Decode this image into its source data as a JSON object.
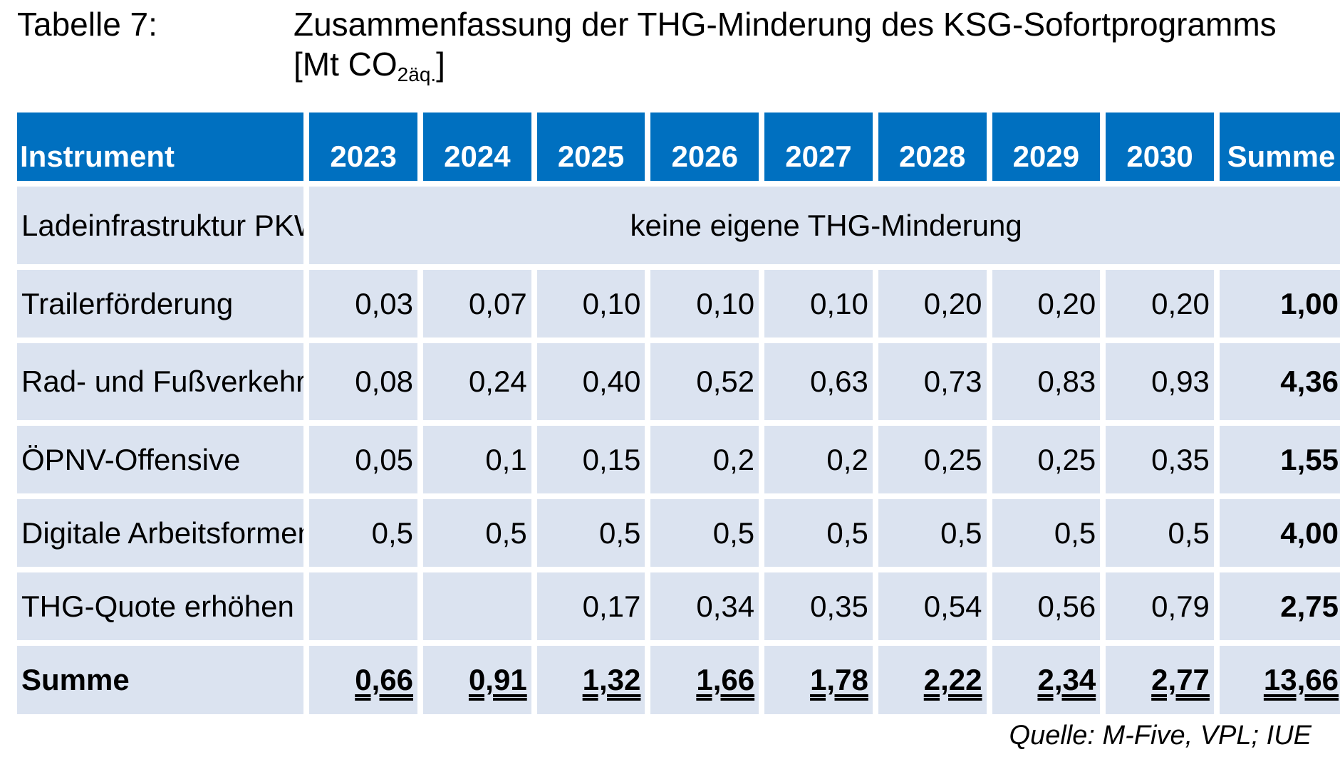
{
  "caption": {
    "label": "Tabelle 7:",
    "title_line1": "Zusammenfassung der THG-Minderung des KSG-Sofortprogramms",
    "unit_prefix": "[Mt CO",
    "unit_sub": "2äq.",
    "unit_suffix": "]"
  },
  "table": {
    "headers": [
      "Instrument",
      "2023",
      "2024",
      "2025",
      "2026",
      "2027",
      "2028",
      "2029",
      "2030",
      "Summe"
    ],
    "rows": [
      {
        "instrument": "Ladeinfrastruktur PKW und NFz",
        "note": "keine eigene THG-Minderung"
      },
      {
        "instrument": "Trailerförderung",
        "values": [
          "0,03",
          "0,07",
          "0,10",
          "0,10",
          "0,10",
          "0,20",
          "0,20",
          "0,20"
        ],
        "sum": "1,00"
      },
      {
        "instrument": "Rad- und Fußverkehr besser",
        "values": [
          "0,08",
          "0,24",
          "0,40",
          "0,52",
          "0,63",
          "0,73",
          "0,83",
          "0,93"
        ],
        "sum": "4,36"
      },
      {
        "instrument": "ÖPNV-Offensive",
        "values": [
          "0,05",
          "0,1",
          "0,15",
          "0,2",
          "0,2",
          "0,25",
          "0,25",
          "0,35"
        ],
        "sum": "1,55"
      },
      {
        "instrument": "Digitale Arbeitsformen",
        "values": [
          "0,5",
          "0,5",
          "0,5",
          "0,5",
          "0,5",
          "0,5",
          "0,5",
          "0,5"
        ],
        "sum": "4,00"
      },
      {
        "instrument": "THG-Quote erhöhen",
        "values": [
          "",
          "",
          "0,17",
          "0,34",
          "0,35",
          "0,54",
          "0,56",
          "0,79"
        ],
        "sum": "2,75"
      }
    ],
    "total": {
      "label": "Summe",
      "values": [
        "0,66",
        "0,91",
        "1,32",
        "1,66",
        "1,78",
        "2,22",
        "2,34",
        "2,77"
      ],
      "sum": "13,66"
    }
  },
  "source": "Quelle: M-Five, VPL; IUE",
  "colors": {
    "header_bg": "#0070c0",
    "cell_bg": "#dbe3f0",
    "header_text": "#ffffff"
  }
}
